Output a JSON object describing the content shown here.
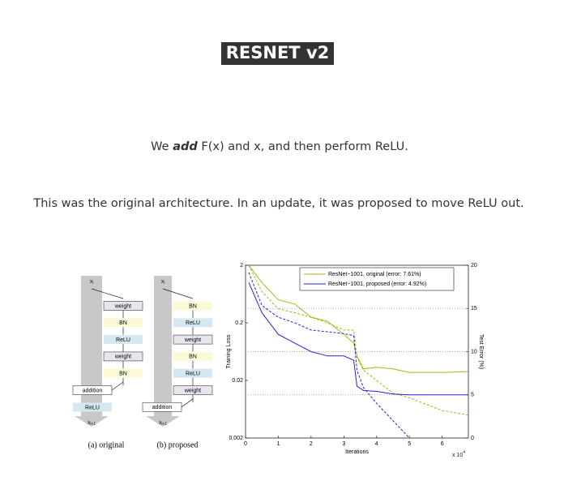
{
  "header": {
    "title": "RESNET v2"
  },
  "paragraphs": [
    {
      "before": "We ",
      "emphasis": "add",
      "after": " F(x) and x, and then perform ReLU."
    },
    {
      "text": "This was the original architecture. In an update, it was proposed to move ReLU out."
    }
  ],
  "figure": {
    "diagrams": [
      {
        "input": {
          "base": "x",
          "sub": "l"
        },
        "blocks": [
          "weight",
          "BN",
          "ReLU",
          "weight",
          "BN"
        ],
        "addition": "addition",
        "after": [
          "ReLU"
        ],
        "output": {
          "base": "x",
          "sub": "l+1"
        },
        "caption": "(a) original"
      },
      {
        "input": {
          "base": "x",
          "sub": "l"
        },
        "blocks": [
          "BN",
          "ReLU",
          "weight",
          "BN",
          "ReLU",
          "weight"
        ],
        "addition": "addition",
        "after": [],
        "output": {
          "base": "x",
          "sub": "l+1"
        },
        "caption": "(b) proposed"
      }
    ],
    "chart": {
      "type": "line",
      "xlabel": "Iterations",
      "ylabel": "Training Loss",
      "y2label": "Test Error (%)",
      "x_multiplier": {
        "base": "x 10",
        "sup": "4"
      },
      "xlim": [
        0,
        6.8
      ],
      "xticks": [
        0,
        1,
        2,
        3,
        4,
        5,
        6
      ],
      "ylim": [
        0.002,
        2
      ],
      "yticks": [
        0.002,
        0.02,
        0.2,
        2
      ],
      "log_y": true,
      "y2lim": [
        0,
        20
      ],
      "y2ticks": [
        0,
        5,
        10,
        15,
        20
      ],
      "grid": true,
      "x": [
        0.1,
        0.5,
        1,
        1.5,
        2,
        2.5,
        3,
        3.3,
        3.4,
        3.6,
        4,
        4.5,
        5,
        6,
        6.8
      ],
      "series": [
        {
          "name": "ResNet−1001, original (error: 7.61%)",
          "color": "#a9b418",
          "loss": [
            2,
            0.7,
            0.35,
            0.3,
            0.25,
            0.2,
            0.15,
            0.15,
            0.05,
            0.03,
            0.02,
            0.012,
            0.01,
            0.006,
            0.005
          ],
          "error": [
            20,
            18,
            16,
            15.5,
            14,
            13.5,
            12,
            11,
            9.5,
            8,
            8.2,
            8,
            7.6,
            7.6,
            7.7
          ]
        },
        {
          "name": "ResNet−1001, proposed (error: 4.92%)",
          "color": "#2323d8",
          "loss": [
            1.5,
            0.4,
            0.25,
            0.2,
            0.15,
            0.14,
            0.13,
            0.12,
            0.03,
            0.015,
            0.008,
            0.004,
            0.002,
            null,
            null
          ],
          "error": [
            18,
            14.5,
            12,
            11,
            10,
            9.5,
            9.5,
            9,
            6,
            5.5,
            5.4,
            5.1,
            5,
            5,
            5
          ]
        }
      ]
    }
  }
}
